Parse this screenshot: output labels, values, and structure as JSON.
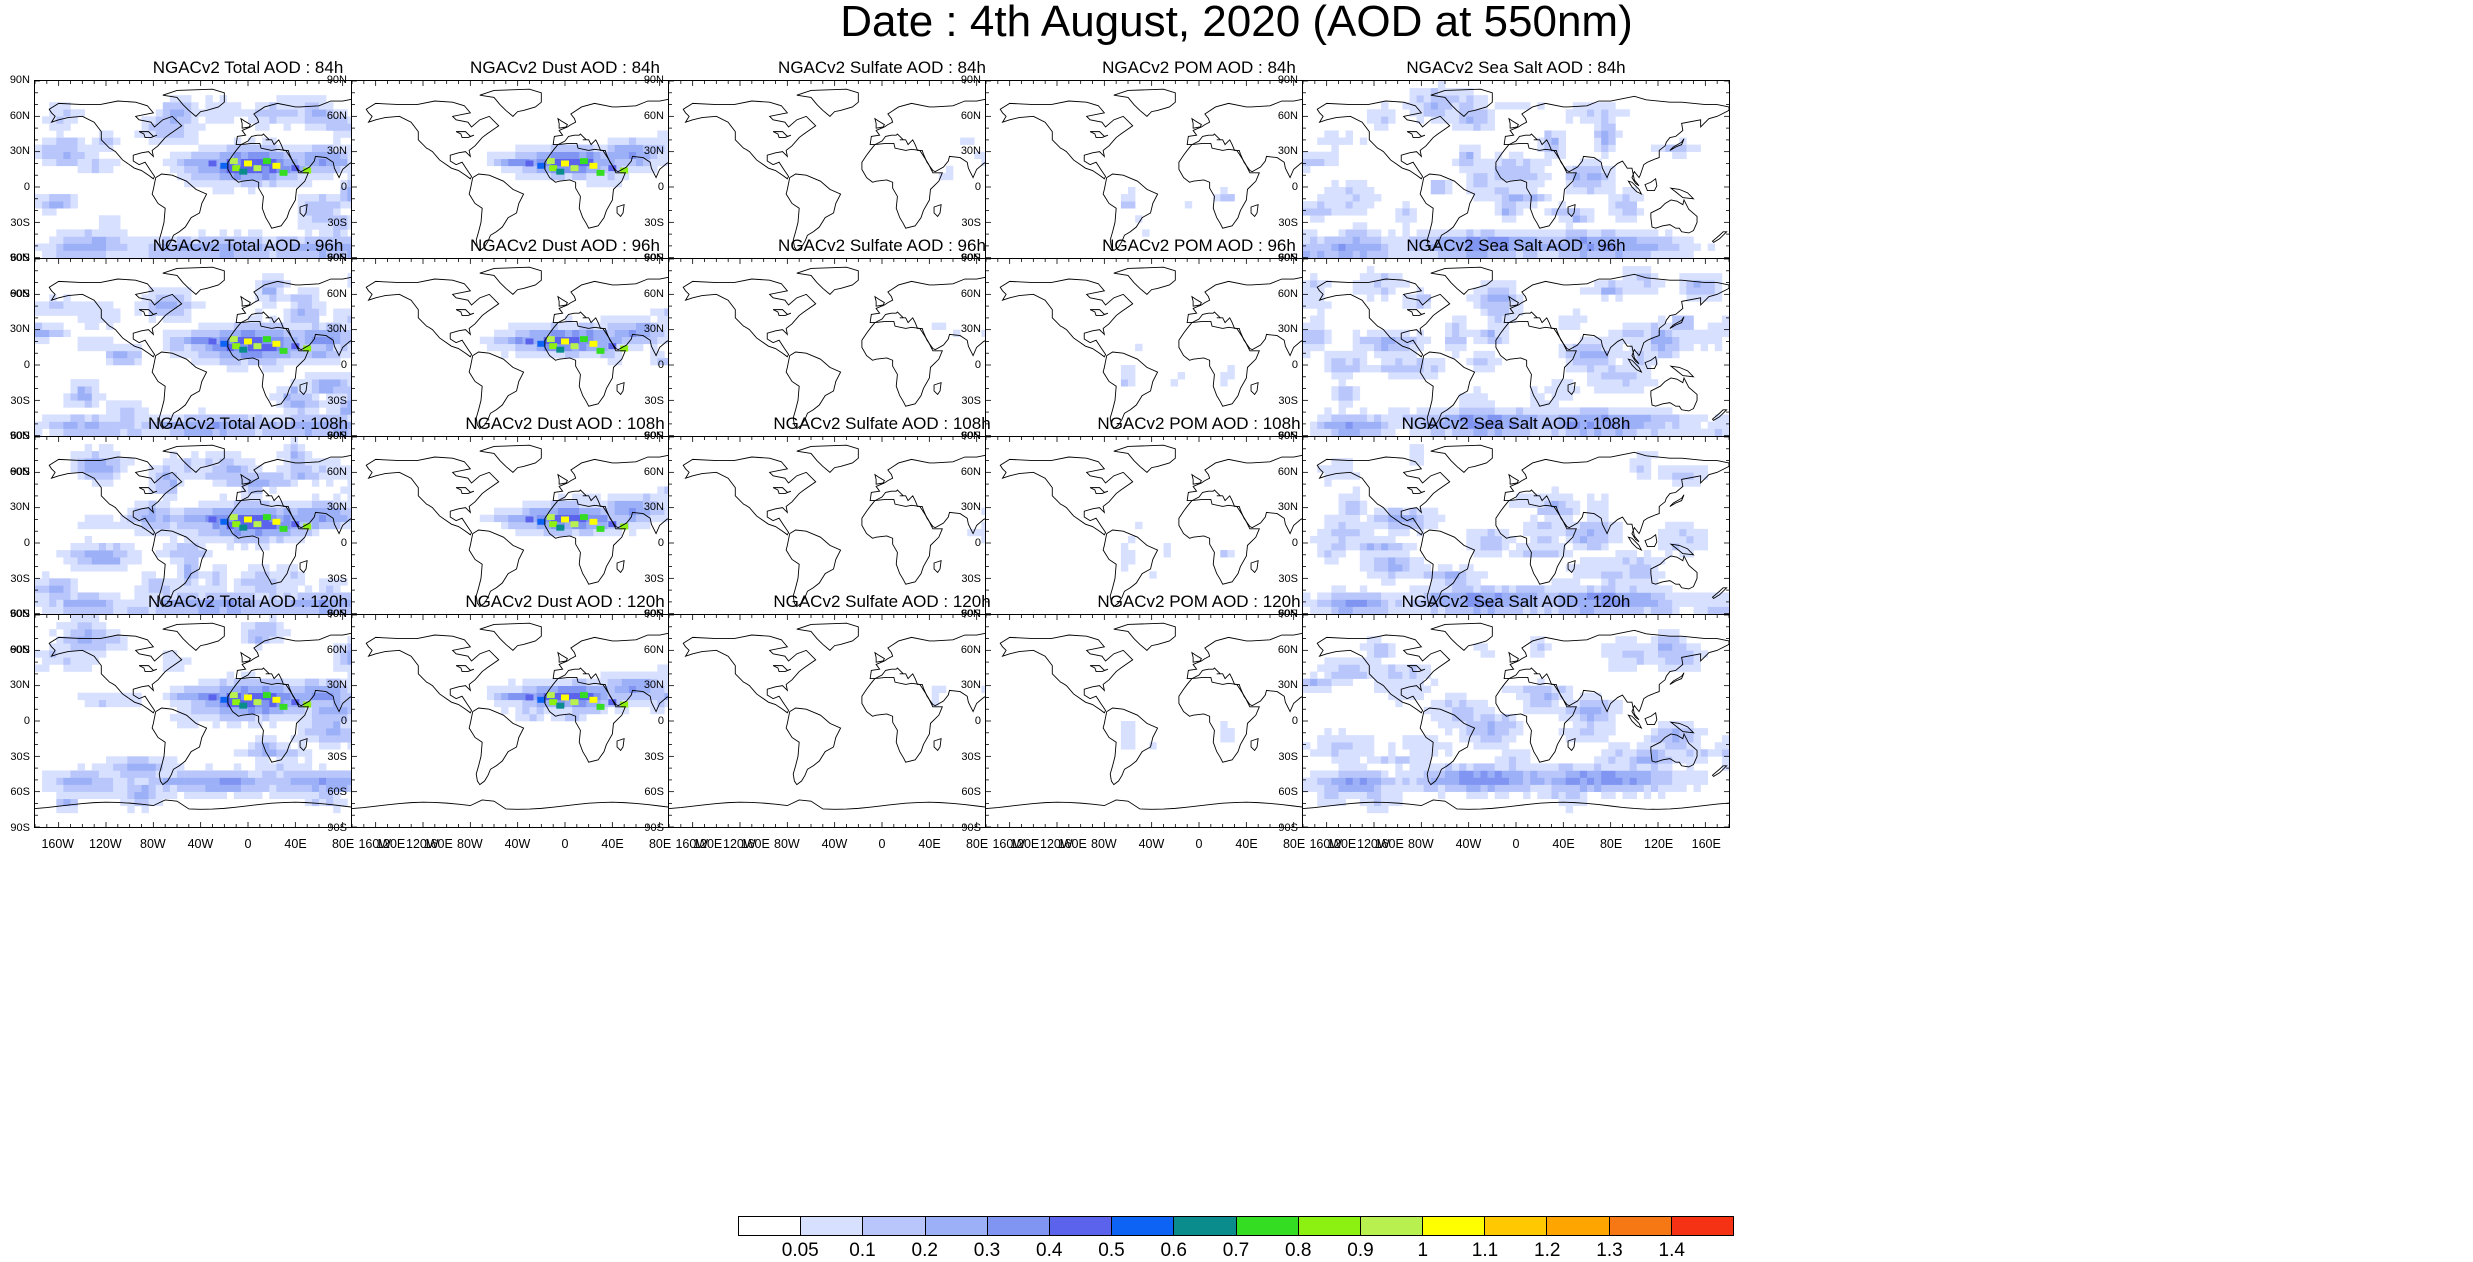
{
  "title": "Date : 4th August, 2020 (AOD at 550nm)",
  "lat_labels": [
    "90N",
    "60N",
    "30N",
    "0",
    "30S",
    "60S",
    "90S"
  ],
  "lon_labels": [
    "160W",
    "120W",
    "80W",
    "40W",
    "0",
    "40E",
    "80E",
    "120E",
    "160E"
  ],
  "species": [
    {
      "name": "Total",
      "fill": "dense",
      "dust_core": true
    },
    {
      "name": "Dust",
      "fill": "dust",
      "dust_core": true
    },
    {
      "name": "Sulfate",
      "fill": "sparse_east",
      "dust_core": false
    },
    {
      "name": "POM",
      "fill": "sparse_south",
      "dust_core": false
    },
    {
      "name": "Sea Salt",
      "fill": "ocean",
      "dust_core": false
    }
  ],
  "rows": [
    {
      "forecast_hour": "84h",
      "titles": [
        "NGACv2 Total AOD : 84h",
        "NGACv2 Dust AOD : 84h",
        "NGACv2 Sulfate AOD : 84h",
        "NGACv2 POM AOD : 84h",
        "NGACv2 Sea Salt AOD : 84h"
      ]
    },
    {
      "forecast_hour": "96h",
      "titles": [
        "NGACv2 Total AOD : 96h",
        "NGACv2 Dust AOD : 96h",
        "NGACv2 Sulfate AOD : 96h",
        "NGACv2 POM AOD : 96h",
        "NGACv2 Sea Salt AOD : 96h"
      ]
    },
    {
      "forecast_hour": "108h",
      "titles": [
        "NGACv2 Total AOD : 108h",
        "NGACv2 Dust AOD : 108h",
        "NGACv2 Sulfate AOD : 108h",
        "NGACv2 POM AOD : 108h",
        "NGACv2 Sea Salt AOD : 108h"
      ]
    },
    {
      "forecast_hour": "120h",
      "titles": [
        "NGACv2 Total AOD : 120h",
        "NGACv2 Dust AOD : 120h",
        "NGACv2 Sulfate AOD : 120h",
        "NGACv2 POM AOD : 120h",
        "NGACv2 Sea Salt  AOD : 120h"
      ]
    }
  ],
  "colorbar": {
    "labels": [
      "0.05",
      "0.1",
      "0.2",
      "0.3",
      "0.4",
      "0.5",
      "0.6",
      "0.7",
      "0.8",
      "0.9",
      "1",
      "1.1",
      "1.2",
      "1.3",
      "1.4"
    ],
    "colors": [
      "#ffffff",
      "#d8e0ff",
      "#b8c6fb",
      "#9cb0f7",
      "#8094f2",
      "#5b63ec",
      "#0d63f3",
      "#0a8c8c",
      "#35dd22",
      "#8cf011",
      "#b8f050",
      "#ffff00",
      "#ffc800",
      "#ffa500",
      "#f57814",
      "#f53214"
    ]
  }
}
